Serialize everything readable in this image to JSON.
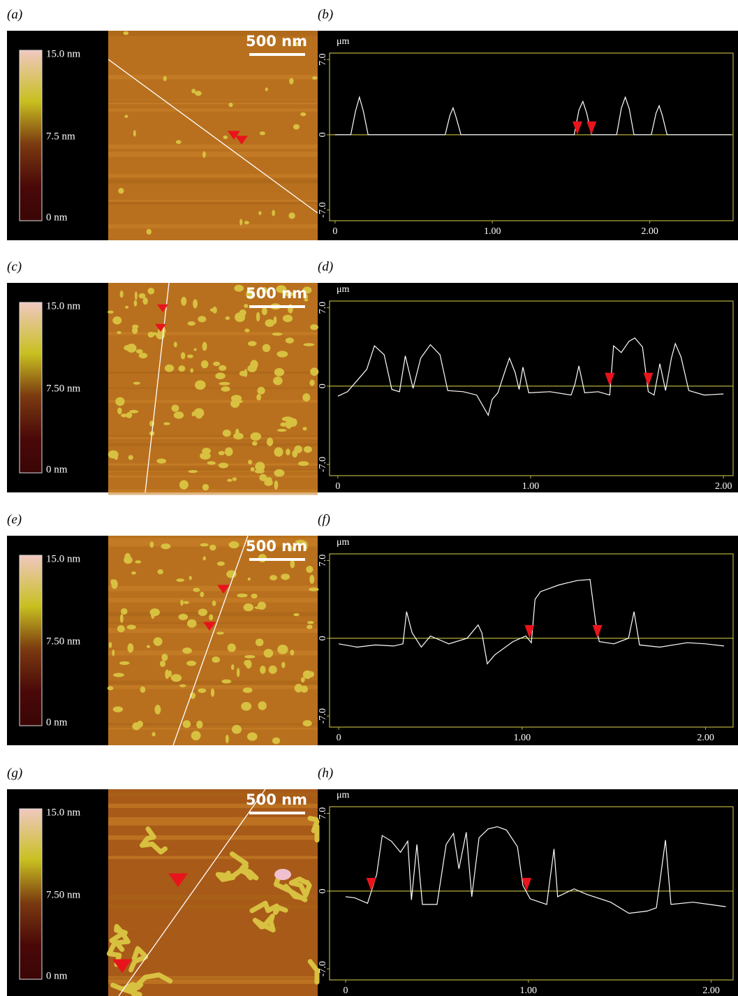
{
  "panels": [
    {
      "label": "(a)",
      "colorbar": [
        "15.0 nm",
        "7.5 nm",
        "0 nm"
      ],
      "scale_bar": "500 nm"
    },
    {
      "label": "(c)",
      "colorbar": [
        "15.0 nm",
        "7.50 nm",
        "0 nm"
      ],
      "scale_bar": "500 nm"
    },
    {
      "label": "(e)",
      "colorbar": [
        "15.0 nm",
        "7.50 nm",
        "0 nm"
      ],
      "scale_bar": "500 nm"
    },
    {
      "label": "(g)",
      "colorbar": [
        "15.0 nm",
        "7.50 nm",
        "0 nm"
      ],
      "scale_bar": "500 nm"
    }
  ],
  "chart_data": [
    {
      "type": "line",
      "label": "(b)",
      "y_unit": "μm",
      "box_color": "#b8b040",
      "zero_line_color": "#c8c040",
      "marker_color": "#e8141c",
      "x": [
        0,
        0.1,
        0.13,
        0.155,
        0.18,
        0.21,
        0.7,
        0.73,
        0.75,
        0.77,
        0.8,
        1.52,
        1.55,
        1.575,
        1.6,
        1.63,
        1.79,
        1.82,
        1.845,
        1.87,
        1.9,
        2.01,
        2.04,
        2.06,
        2.08,
        2.11,
        2.52
      ],
      "series": [
        {
          "color": "#ffffff",
          "values": [
            0,
            0,
            2.2,
            3.5,
            2.2,
            0,
            0,
            1.8,
            2.5,
            1.6,
            0,
            0,
            2.3,
            3.1,
            2.0,
            0,
            0,
            2.5,
            3.5,
            2.4,
            0,
            0,
            2.0,
            2.7,
            1.8,
            0,
            0
          ]
        }
      ],
      "markers_x": [
        1.54,
        1.63
      ],
      "xlim": [
        -0.035,
        2.53
      ],
      "ylim": [
        -8,
        7.6
      ],
      "xticks": [
        0,
        {
          "value": 1,
          "label": "1.00"
        },
        {
          "value": 2,
          "label": "2.00"
        }
      ],
      "yticks": [
        {
          "value": -7,
          "label": "-7.0"
        },
        0,
        {
          "value": 7,
          "label": "7.0"
        }
      ]
    },
    {
      "type": "line",
      "label": "(d)",
      "y_unit": "μm",
      "box_color": "#b8b040",
      "zero_line_color": "#c8c040",
      "marker_color": "#e8141c",
      "x": [
        0,
        0.05,
        0.1,
        0.15,
        0.19,
        0.24,
        0.28,
        0.32,
        0.35,
        0.39,
        0.43,
        0.48,
        0.53,
        0.57,
        0.65,
        0.72,
        0.78,
        0.8,
        0.83,
        0.87,
        0.89,
        0.92,
        0.94,
        0.96,
        0.99,
        1.1,
        1.21,
        1.23,
        1.25,
        1.28,
        1.35,
        1.41,
        1.43,
        1.47,
        1.51,
        1.54,
        1.58,
        1.61,
        1.64,
        1.67,
        1.7,
        1.73,
        1.75,
        1.78,
        1.82,
        1.9,
        2.0
      ],
      "series": [
        {
          "color": "#ffffff",
          "values": [
            -0.9,
            -0.5,
            0.5,
            1.5,
            3.6,
            2.8,
            -0.3,
            -0.5,
            2.7,
            -0.2,
            2.5,
            3.7,
            2.8,
            -0.4,
            -0.5,
            -0.8,
            -2.6,
            -1.2,
            -0.6,
            1.5,
            2.5,
            1.2,
            -0.3,
            1.7,
            -0.6,
            -0.5,
            -0.8,
            0.2,
            1.8,
            -0.6,
            -0.5,
            -0.8,
            3.6,
            3.0,
            4.0,
            4.3,
            3.5,
            -0.5,
            -0.8,
            2.0,
            -0.4,
            2.5,
            3.8,
            2.6,
            -0.4,
            -0.8,
            -0.7
          ]
        }
      ],
      "markers_x": [
        1.41,
        1.61
      ],
      "xlim": [
        -0.043,
        2.05
      ],
      "ylim": [
        -8,
        7.6
      ],
      "xticks": [
        0,
        {
          "value": 1,
          "label": "1.00"
        },
        {
          "value": 2,
          "label": "2.00"
        }
      ],
      "yticks": [
        {
          "value": -7,
          "label": "-7.0"
        },
        0,
        {
          "value": 7,
          "label": "7.0"
        }
      ]
    },
    {
      "type": "line",
      "label": "(f)",
      "y_unit": "μm",
      "box_color": "#b8b040",
      "zero_line_color": "#c8c040",
      "marker_color": "#e8141c",
      "x": [
        0,
        0.1,
        0.2,
        0.3,
        0.35,
        0.37,
        0.4,
        0.45,
        0.5,
        0.6,
        0.7,
        0.76,
        0.78,
        0.81,
        0.85,
        0.95,
        1.02,
        1.05,
        1.07,
        1.1,
        1.15,
        1.2,
        1.25,
        1.3,
        1.37,
        1.4,
        1.42,
        1.5,
        1.58,
        1.61,
        1.64,
        1.75,
        1.9,
        2.0,
        2.1
      ],
      "series": [
        {
          "color": "#ffffff",
          "values": [
            -0.5,
            -0.8,
            -0.6,
            -0.7,
            -0.5,
            2.4,
            0.5,
            -0.8,
            0.2,
            -0.5,
            0.0,
            1.2,
            0.5,
            -2.3,
            -1.5,
            -0.3,
            0.2,
            -0.4,
            3.5,
            4.2,
            4.5,
            4.8,
            5.0,
            5.2,
            5.3,
            1.5,
            -0.3,
            -0.5,
            0.0,
            2.4,
            -0.6,
            -0.8,
            -0.4,
            -0.5,
            -0.7
          ]
        }
      ],
      "markers_x": [
        1.04,
        1.41
      ],
      "xlim": [
        -0.05,
        2.15
      ],
      "ylim": [
        -8,
        7.6
      ],
      "xticks": [
        0,
        {
          "value": 1,
          "label": "1.00"
        },
        {
          "value": 2,
          "label": "2.00"
        }
      ],
      "yticks": [
        {
          "value": -7,
          "label": "-7.0"
        },
        0,
        {
          "value": 7,
          "label": "7.0"
        }
      ]
    },
    {
      "type": "line",
      "label": "(h)",
      "y_unit": "μm",
      "box_color": "#b8b040",
      "zero_line_color": "#c8c040",
      "marker_color": "#e8141c",
      "x": [
        0,
        0.05,
        0.12,
        0.17,
        0.2,
        0.25,
        0.3,
        0.34,
        0.36,
        0.39,
        0.42,
        0.5,
        0.55,
        0.59,
        0.62,
        0.66,
        0.69,
        0.73,
        0.78,
        0.83,
        0.88,
        0.94,
        0.97,
        1.01,
        1.1,
        1.14,
        1.16,
        1.25,
        1.32,
        1.45,
        1.55,
        1.65,
        1.7,
        1.75,
        1.78,
        1.9,
        2.08
      ],
      "series": [
        {
          "color": "#ffffff",
          "values": [
            -0.5,
            -0.6,
            -1.1,
            1.5,
            5.0,
            4.5,
            3.5,
            4.5,
            -0.8,
            4.2,
            -1.2,
            -1.2,
            4.2,
            5.2,
            2.0,
            5.3,
            -0.5,
            4.8,
            5.6,
            5.8,
            5.5,
            4.0,
            0.5,
            -0.7,
            -1.2,
            3.8,
            -0.5,
            0.2,
            -0.3,
            -1.0,
            -2.0,
            -1.8,
            -1.5,
            4.6,
            -1.2,
            -1.0,
            -1.4
          ]
        }
      ],
      "markers_x": [
        0.14,
        0.99
      ],
      "xlim": [
        -0.088,
        2.12
      ],
      "ylim": [
        -8,
        7.6
      ],
      "xticks": [
        0,
        {
          "value": 1,
          "label": "1.00"
        },
        {
          "value": 2,
          "label": "2.00"
        }
      ],
      "yticks": [
        {
          "value": -7,
          "label": "-7.0"
        },
        0,
        {
          "value": 7,
          "label": "7.0"
        }
      ]
    }
  ]
}
